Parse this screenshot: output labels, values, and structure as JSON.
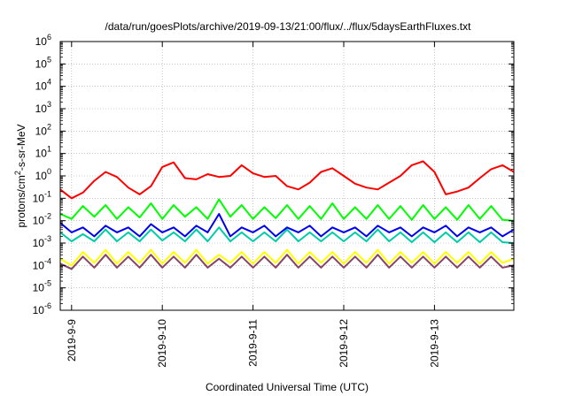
{
  "chart_data": {
    "type": "line",
    "title": "/data/run/goesPlots/archive/2019-09-13/21:00/flux/../flux/5daysEarthFluxes.txt",
    "xlabel": "Coordinated Universal Time (UTC)",
    "ylabel": {
      "prefix": "protons/cm",
      "sup": "2",
      "suffix": "-s-sr-MeV"
    },
    "y_scale": "log",
    "ylim": [
      "1e-6",
      "1e6"
    ],
    "y_ticks": [
      {
        "value": "1e6",
        "base": "10",
        "exp": "6"
      },
      {
        "value": "1e5",
        "base": "10",
        "exp": "5"
      },
      {
        "value": "1e4",
        "base": "10",
        "exp": "4"
      },
      {
        "value": "1e3",
        "base": "10",
        "exp": "3"
      },
      {
        "value": "1e2",
        "base": "10",
        "exp": "2"
      },
      {
        "value": "1e1",
        "base": "10",
        "exp": "1"
      },
      {
        "value": "1e0",
        "base": "10",
        "exp": "0"
      },
      {
        "value": "1e-1",
        "base": "10",
        "exp": "-1"
      },
      {
        "value": "1e-2",
        "base": "10",
        "exp": "-2"
      },
      {
        "value": "1e-3",
        "base": "10",
        "exp": "-3"
      },
      {
        "value": "1e-4",
        "base": "10",
        "exp": "-4"
      },
      {
        "value": "1e-5",
        "base": "10",
        "exp": "-5"
      },
      {
        "value": "1e-6",
        "base": "10",
        "exp": "-6"
      }
    ],
    "xlim": [
      "2019-09-08T21:00",
      "2019-09-13T21:00"
    ],
    "x_ticks": [
      {
        "value": "2019-09-09T00:00",
        "label": "2019-9-9"
      },
      {
        "value": "2019-09-10T00:00",
        "label": "2019-9-10"
      },
      {
        "value": "2019-09-11T00:00",
        "label": "2019-9-11"
      },
      {
        "value": "2019-09-12T00:00",
        "label": "2019-9-12"
      },
      {
        "value": "2019-09-13T00:00",
        "label": "2019-9-13"
      }
    ],
    "grid": "dotted",
    "legend": "none",
    "series": [
      {
        "color": "#ff0000",
        "x": [
          "2019-09-08T21:00",
          "2019-09-09T00:00",
          "2019-09-09T03:00",
          "2019-09-09T06:00",
          "2019-09-09T09:00",
          "2019-09-09T12:00",
          "2019-09-09T15:00",
          "2019-09-09T18:00",
          "2019-09-09T21:00",
          "2019-09-10T00:00",
          "2019-09-10T03:00",
          "2019-09-10T06:00",
          "2019-09-10T09:00",
          "2019-09-10T12:00",
          "2019-09-10T15:00",
          "2019-09-10T18:00",
          "2019-09-10T21:00",
          "2019-09-11T00:00",
          "2019-09-11T03:00",
          "2019-09-11T06:00",
          "2019-09-11T09:00",
          "2019-09-11T12:00",
          "2019-09-11T15:00",
          "2019-09-11T18:00",
          "2019-09-11T21:00",
          "2019-09-12T00:00",
          "2019-09-12T03:00",
          "2019-09-12T06:00",
          "2019-09-12T09:00",
          "2019-09-12T12:00",
          "2019-09-12T15:00",
          "2019-09-12T18:00",
          "2019-09-12T21:00",
          "2019-09-13T00:00",
          "2019-09-13T03:00",
          "2019-09-13T06:00",
          "2019-09-13T09:00",
          "2019-09-13T12:00",
          "2019-09-13T15:00",
          "2019-09-13T18:00",
          "2019-09-13T21:00"
        ],
        "y": [
          0.25,
          0.1,
          0.18,
          0.6,
          1.5,
          0.9,
          0.3,
          0.15,
          0.35,
          2.5,
          4,
          0.8,
          0.7,
          1.2,
          0.9,
          1.0,
          3,
          1.3,
          0.9,
          1.0,
          0.35,
          0.25,
          0.5,
          1.5,
          2.2,
          1.0,
          0.45,
          0.3,
          0.25,
          0.5,
          1.0,
          3,
          4.5,
          1.5,
          0.15,
          0.2,
          0.3,
          0.8,
          2,
          3,
          1.5
        ]
      },
      {
        "color": "#00ff00",
        "x": [
          "2019-09-08T21:00",
          "2019-09-09T00:00",
          "2019-09-09T03:00",
          "2019-09-09T06:00",
          "2019-09-09T09:00",
          "2019-09-09T12:00",
          "2019-09-09T15:00",
          "2019-09-09T18:00",
          "2019-09-09T21:00",
          "2019-09-10T00:00",
          "2019-09-10T03:00",
          "2019-09-10T06:00",
          "2019-09-10T09:00",
          "2019-09-10T12:00",
          "2019-09-10T15:00",
          "2019-09-10T18:00",
          "2019-09-10T21:00",
          "2019-09-11T00:00",
          "2019-09-11T03:00",
          "2019-09-11T06:00",
          "2019-09-11T09:00",
          "2019-09-11T12:00",
          "2019-09-11T15:00",
          "2019-09-11T18:00",
          "2019-09-11T21:00",
          "2019-09-12T00:00",
          "2019-09-12T03:00",
          "2019-09-12T06:00",
          "2019-09-12T09:00",
          "2019-09-12T12:00",
          "2019-09-12T15:00",
          "2019-09-12T18:00",
          "2019-09-12T21:00",
          "2019-09-13T00:00",
          "2019-09-13T03:00",
          "2019-09-13T06:00",
          "2019-09-13T09:00",
          "2019-09-13T12:00",
          "2019-09-13T15:00",
          "2019-09-13T18:00",
          "2019-09-13T21:00"
        ],
        "y": [
          0.02,
          0.012,
          0.045,
          0.015,
          0.05,
          0.012,
          0.04,
          0.014,
          0.06,
          0.012,
          0.05,
          0.015,
          0.04,
          0.012,
          0.09,
          0.015,
          0.05,
          0.012,
          0.04,
          0.013,
          0.05,
          0.012,
          0.045,
          0.012,
          0.06,
          0.012,
          0.04,
          0.012,
          0.05,
          0.012,
          0.045,
          0.011,
          0.05,
          0.012,
          0.04,
          0.011,
          0.05,
          0.012,
          0.045,
          0.011,
          0.01
        ]
      },
      {
        "color": "#0000ee",
        "x": [
          "2019-09-08T21:00",
          "2019-09-09T00:00",
          "2019-09-09T03:00",
          "2019-09-09T06:00",
          "2019-09-09T09:00",
          "2019-09-09T12:00",
          "2019-09-09T15:00",
          "2019-09-09T18:00",
          "2019-09-09T21:00",
          "2019-09-10T00:00",
          "2019-09-10T03:00",
          "2019-09-10T06:00",
          "2019-09-10T09:00",
          "2019-09-10T12:00",
          "2019-09-10T15:00",
          "2019-09-10T18:00",
          "2019-09-10T21:00",
          "2019-09-11T00:00",
          "2019-09-11T03:00",
          "2019-09-11T06:00",
          "2019-09-11T09:00",
          "2019-09-11T12:00",
          "2019-09-11T15:00",
          "2019-09-11T18:00",
          "2019-09-11T21:00",
          "2019-09-12T00:00",
          "2019-09-12T03:00",
          "2019-09-12T06:00",
          "2019-09-12T09:00",
          "2019-09-12T12:00",
          "2019-09-12T15:00",
          "2019-09-12T18:00",
          "2019-09-12T21:00",
          "2019-09-13T00:00",
          "2019-09-13T03:00",
          "2019-09-13T06:00",
          "2019-09-13T09:00",
          "2019-09-13T12:00",
          "2019-09-13T15:00",
          "2019-09-13T18:00",
          "2019-09-13T21:00"
        ],
        "y": [
          0.008,
          0.003,
          0.005,
          0.002,
          0.006,
          0.003,
          0.005,
          0.002,
          0.007,
          0.003,
          0.005,
          0.002,
          0.006,
          0.003,
          0.02,
          0.002,
          0.005,
          0.003,
          0.006,
          0.002,
          0.005,
          0.003,
          0.006,
          0.002,
          0.005,
          0.003,
          0.005,
          0.002,
          0.006,
          0.003,
          0.005,
          0.002,
          0.005,
          0.003,
          0.006,
          0.002,
          0.005,
          0.003,
          0.005,
          0.002,
          0.004
        ]
      },
      {
        "color": "#00ccaa",
        "x": [
          "2019-09-08T21:00",
          "2019-09-09T00:00",
          "2019-09-09T03:00",
          "2019-09-09T06:00",
          "2019-09-09T09:00",
          "2019-09-09T12:00",
          "2019-09-09T15:00",
          "2019-09-09T18:00",
          "2019-09-09T21:00",
          "2019-09-10T00:00",
          "2019-09-10T03:00",
          "2019-09-10T06:00",
          "2019-09-10T09:00",
          "2019-09-10T12:00",
          "2019-09-10T15:00",
          "2019-09-10T18:00",
          "2019-09-10T21:00",
          "2019-09-11T00:00",
          "2019-09-11T03:00",
          "2019-09-11T06:00",
          "2019-09-11T09:00",
          "2019-09-11T12:00",
          "2019-09-11T15:00",
          "2019-09-11T18:00",
          "2019-09-11T21:00",
          "2019-09-12T00:00",
          "2019-09-12T03:00",
          "2019-09-12T06:00",
          "2019-09-12T09:00",
          "2019-09-12T12:00",
          "2019-09-12T15:00",
          "2019-09-12T18:00",
          "2019-09-12T21:00",
          "2019-09-13T00:00",
          "2019-09-13T03:00",
          "2019-09-13T06:00",
          "2019-09-13T09:00",
          "2019-09-13T12:00",
          "2019-09-13T15:00",
          "2019-09-13T18:00",
          "2019-09-13T21:00"
        ],
        "y": [
          0.003,
          0.0012,
          0.0025,
          0.0012,
          0.004,
          0.0012,
          0.003,
          0.0012,
          0.004,
          0.0013,
          0.003,
          0.0012,
          0.004,
          0.0012,
          0.005,
          0.0012,
          0.003,
          0.0012,
          0.003,
          0.0012,
          0.004,
          0.0012,
          0.003,
          0.0012,
          0.003,
          0.0012,
          0.003,
          0.0012,
          0.004,
          0.0012,
          0.003,
          0.0011,
          0.003,
          0.0011,
          0.003,
          0.0011,
          0.003,
          0.0011,
          0.003,
          0.0011,
          0.001
        ]
      },
      {
        "color": "#ffff00",
        "x": [
          "2019-09-08T21:00",
          "2019-09-09T00:00",
          "2019-09-09T03:00",
          "2019-09-09T06:00",
          "2019-09-09T09:00",
          "2019-09-09T12:00",
          "2019-09-09T15:00",
          "2019-09-09T18:00",
          "2019-09-09T21:00",
          "2019-09-10T00:00",
          "2019-09-10T03:00",
          "2019-09-10T06:00",
          "2019-09-10T09:00",
          "2019-09-10T12:00",
          "2019-09-10T15:00",
          "2019-09-10T18:00",
          "2019-09-10T21:00",
          "2019-09-11T00:00",
          "2019-09-11T03:00",
          "2019-09-11T06:00",
          "2019-09-11T09:00",
          "2019-09-11T12:00",
          "2019-09-11T15:00",
          "2019-09-11T18:00",
          "2019-09-11T21:00",
          "2019-09-12T00:00",
          "2019-09-12T03:00",
          "2019-09-12T06:00",
          "2019-09-12T09:00",
          "2019-09-12T12:00",
          "2019-09-12T15:00",
          "2019-09-12T18:00",
          "2019-09-12T21:00",
          "2019-09-13T00:00",
          "2019-09-13T03:00",
          "2019-09-13T06:00",
          "2019-09-13T09:00",
          "2019-09-13T12:00",
          "2019-09-13T15:00",
          "2019-09-13T18:00",
          "2019-09-13T21:00"
        ],
        "y": [
          0.0002,
          0.0001,
          0.0004,
          0.00013,
          0.0005,
          0.00012,
          0.0004,
          0.00013,
          0.0005,
          0.00012,
          0.0004,
          0.00013,
          0.0005,
          0.00012,
          0.0003,
          0.00013,
          0.0004,
          0.00012,
          0.0004,
          0.00013,
          0.0005,
          0.00012,
          0.0004,
          0.00013,
          0.0004,
          0.00012,
          0.0004,
          0.00013,
          0.0005,
          0.00012,
          0.0004,
          0.00013,
          0.0004,
          0.00012,
          0.0004,
          0.00013,
          0.0004,
          0.00012,
          0.0004,
          0.00013,
          0.0002
        ]
      },
      {
        "color": "#884466",
        "x": [
          "2019-09-08T21:00",
          "2019-09-09T00:00",
          "2019-09-09T03:00",
          "2019-09-09T06:00",
          "2019-09-09T09:00",
          "2019-09-09T12:00",
          "2019-09-09T15:00",
          "2019-09-09T18:00",
          "2019-09-09T21:00",
          "2019-09-10T00:00",
          "2019-09-10T03:00",
          "2019-09-10T06:00",
          "2019-09-10T09:00",
          "2019-09-10T12:00",
          "2019-09-10T15:00",
          "2019-09-10T18:00",
          "2019-09-10T21:00",
          "2019-09-11T00:00",
          "2019-09-11T03:00",
          "2019-09-11T06:00",
          "2019-09-11T09:00",
          "2019-09-11T12:00",
          "2019-09-11T15:00",
          "2019-09-11T18:00",
          "2019-09-11T21:00",
          "2019-09-12T00:00",
          "2019-09-12T03:00",
          "2019-09-12T06:00",
          "2019-09-12T09:00",
          "2019-09-12T12:00",
          "2019-09-12T15:00",
          "2019-09-12T18:00",
          "2019-09-12T21:00",
          "2019-09-13T00:00",
          "2019-09-13T03:00",
          "2019-09-13T06:00",
          "2019-09-13T09:00",
          "2019-09-13T12:00",
          "2019-09-13T15:00",
          "2019-09-13T18:00",
          "2019-09-13T21:00"
        ],
        "y": [
          0.00012,
          7e-05,
          0.00025,
          8e-05,
          0.0003,
          8e-05,
          0.00025,
          8e-05,
          0.0003,
          8e-05,
          0.00025,
          8e-05,
          0.0003,
          8e-05,
          0.0002,
          8e-05,
          0.00025,
          8e-05,
          0.00025,
          8e-05,
          0.0003,
          8e-05,
          0.00025,
          8e-05,
          0.00025,
          8e-05,
          0.00025,
          8e-05,
          0.0003,
          8e-05,
          0.00025,
          8e-05,
          0.00025,
          8e-05,
          0.00025,
          8e-05,
          0.00025,
          8e-05,
          0.00025,
          8e-05,
          0.0001
        ]
      }
    ]
  }
}
